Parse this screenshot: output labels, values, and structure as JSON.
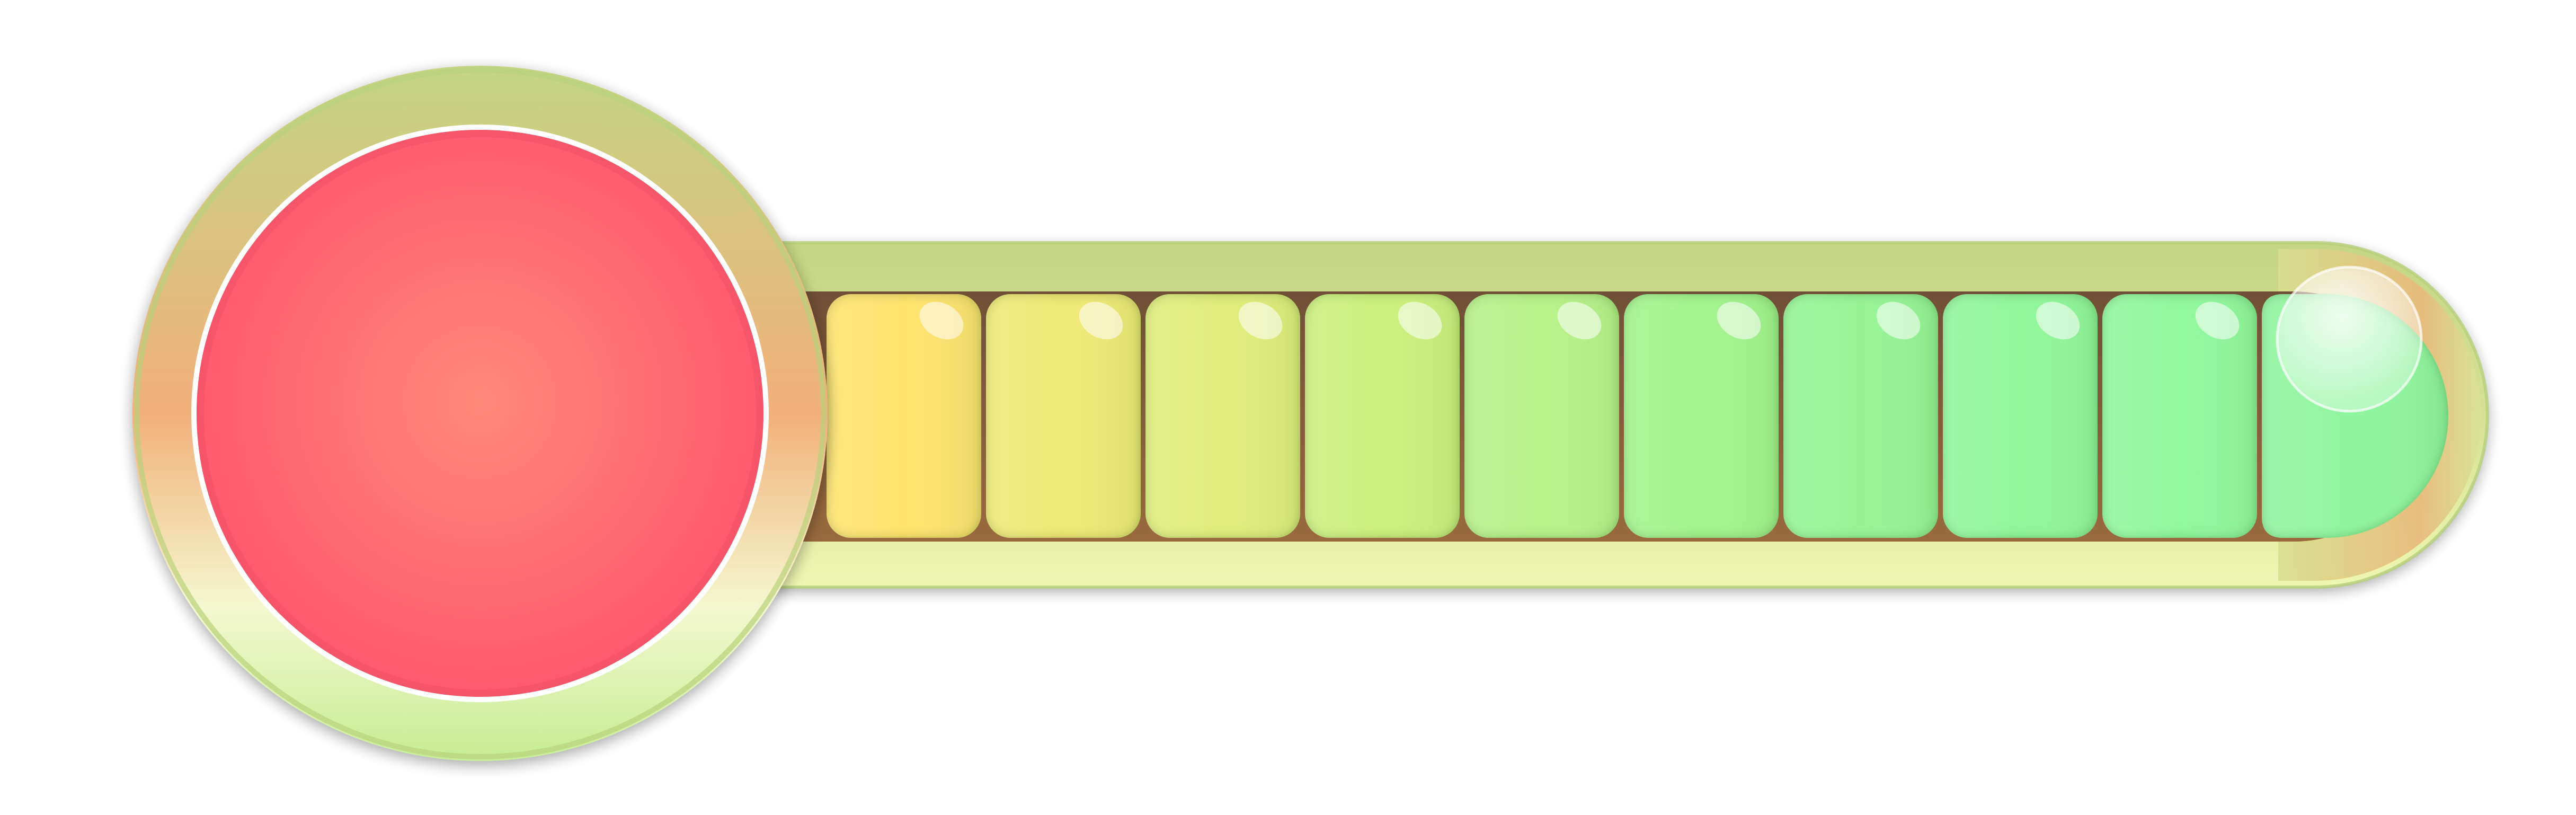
{
  "meter": {
    "level": 1.0,
    "segment_count": 10,
    "filled_segments": 10,
    "segment_colors": [
      "#ffe36e",
      "#efe976",
      "#e0ed7c",
      "#cdf07e",
      "#b7f288",
      "#a3f38e",
      "#96f496",
      "#90f79b",
      "#90f89d",
      "#8ff59e"
    ]
  },
  "orb": {
    "state_color": "#ff5e6e"
  },
  "colors": {
    "frame_top": "#c6d684",
    "frame_bottom": "#eef6b4",
    "frame_warm": "#f3b27a",
    "track_channel": "#7e5a3c"
  }
}
